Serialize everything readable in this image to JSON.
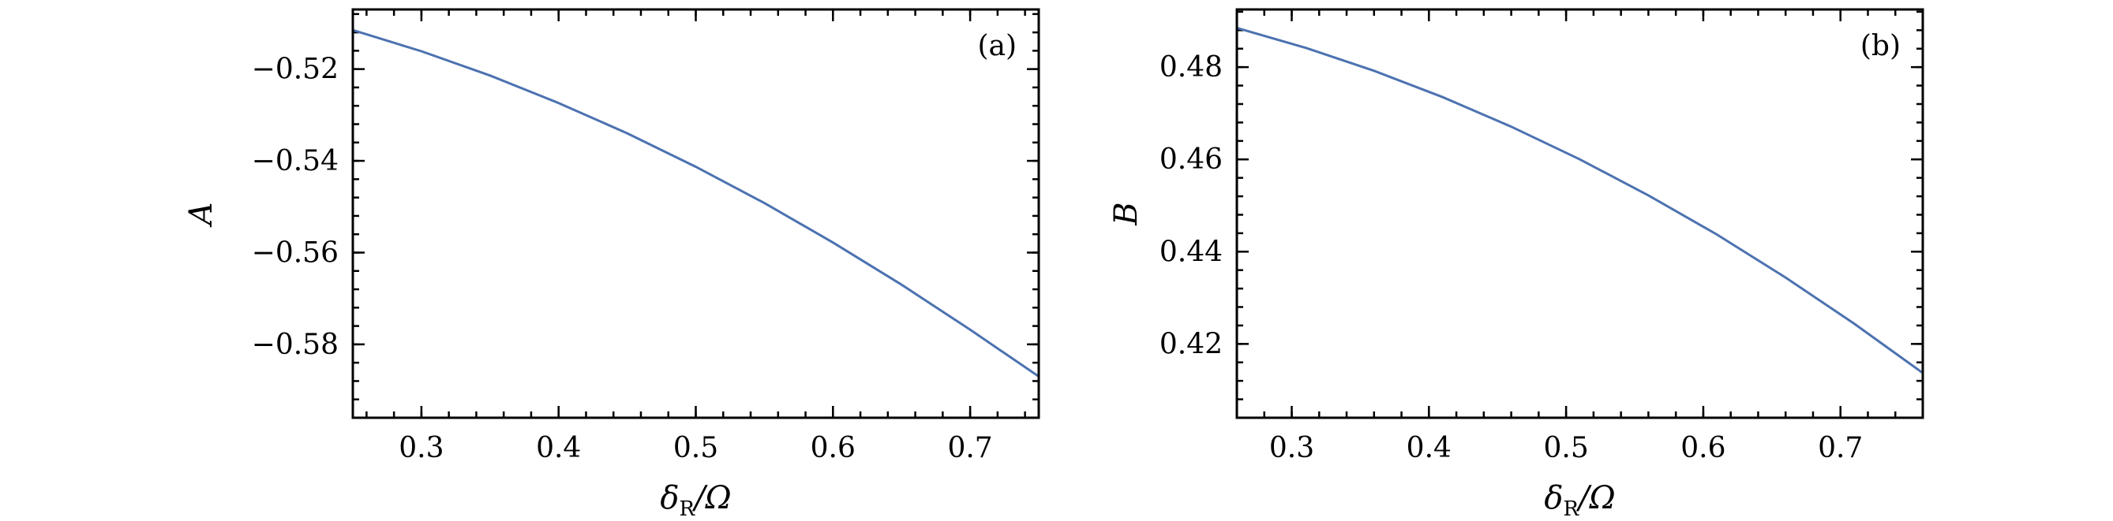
{
  "chart_data": [
    {
      "type": "line",
      "panel_label": "(a)",
      "xlabel_symbol": "δ",
      "xlabel_subscript": "R",
      "xlabel_rest": "/Ω",
      "ylabel": "A",
      "xlim": [
        0.25,
        0.75
      ],
      "ylim": [
        -0.596,
        -0.507
      ],
      "xticks": [
        0.3,
        0.4,
        0.5,
        0.6,
        0.7
      ],
      "xtick_labels": [
        "0.3",
        "0.4",
        "0.5",
        "0.6",
        "0.7"
      ],
      "xminor_step": 0.02,
      "yticks": [
        -0.52,
        -0.54,
        -0.56,
        -0.58
      ],
      "ytick_labels": [
        "−0.52",
        "−0.54",
        "−0.56",
        "−0.58"
      ],
      "yminor_step": 0.004,
      "series": [
        {
          "color": "#4c72b0",
          "x": [
            0.25,
            0.3,
            0.35,
            0.4,
            0.45,
            0.5,
            0.55,
            0.6,
            0.65,
            0.7,
            0.75
          ],
          "y": [
            -0.5115,
            -0.5161,
            -0.5214,
            -0.5274,
            -0.534,
            -0.5413,
            -0.5492,
            -0.5578,
            -0.567,
            -0.5768,
            -0.587
          ]
        }
      ]
    },
    {
      "type": "line",
      "panel_label": "(b)",
      "xlabel_symbol": "δ",
      "xlabel_subscript": "R",
      "xlabel_rest": "/Ω",
      "ylabel": "B",
      "xlim": [
        0.26,
        0.76
      ],
      "ylim": [
        0.404,
        0.4925
      ],
      "xticks": [
        0.3,
        0.4,
        0.5,
        0.6,
        0.7
      ],
      "xtick_labels": [
        "0.3",
        "0.4",
        "0.5",
        "0.6",
        "0.7"
      ],
      "xminor_step": 0.02,
      "yticks": [
        0.42,
        0.44,
        0.46,
        0.48
      ],
      "ytick_labels": [
        "0.42",
        "0.44",
        "0.46",
        "0.48"
      ],
      "yminor_step": 0.004,
      "series": [
        {
          "color": "#4c72b0",
          "x": [
            0.26,
            0.31,
            0.36,
            0.41,
            0.46,
            0.51,
            0.56,
            0.61,
            0.66,
            0.71,
            0.76
          ],
          "y": [
            0.4885,
            0.4842,
            0.4792,
            0.4735,
            0.4671,
            0.46,
            0.4522,
            0.4437,
            0.4344,
            0.4244,
            0.4137
          ]
        }
      ]
    }
  ]
}
